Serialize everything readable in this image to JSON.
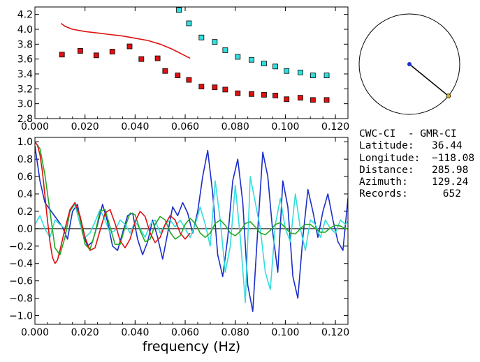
{
  "chart_data": [
    {
      "type": "scatter",
      "title": "",
      "xlabel": "",
      "ylabel": "",
      "xlim": [
        0.0,
        0.125
      ],
      "ylim": [
        2.8,
        4.3
      ],
      "xticks": [
        0.0,
        0.02,
        0.04,
        0.06,
        0.08,
        0.1,
        0.12
      ],
      "xtick_labels": [
        "0.000",
        "0.020",
        "0.040",
        "0.060",
        "0.080",
        "0.100",
        "0.120"
      ],
      "yticks": [
        2.8,
        3.0,
        3.2,
        3.4,
        3.6,
        3.8,
        4.0,
        4.2
      ],
      "ytick_labels": [
        "2.8",
        "3.0",
        "3.2",
        "3.4",
        "3.6",
        "3.8",
        "4.0",
        "4.2"
      ],
      "series": [
        {
          "name": "red squares",
          "style": "markers",
          "color": "#dd1111",
          "x": [
            0.0108,
            0.0181,
            0.0245,
            0.0309,
            0.0378,
            0.0425,
            0.049,
            0.052,
            0.057,
            0.0615,
            0.0665,
            0.0718,
            0.076,
            0.081,
            0.0865,
            0.0915,
            0.096,
            0.1005,
            0.106,
            0.111,
            0.1165
          ],
          "y": [
            3.66,
            3.71,
            3.65,
            3.7,
            3.77,
            3.6,
            3.61,
            3.44,
            3.38,
            3.32,
            3.23,
            3.22,
            3.19,
            3.14,
            3.13,
            3.12,
            3.11,
            3.06,
            3.08,
            3.05,
            3.05
          ]
        },
        {
          "name": "cyan squares",
          "style": "markers",
          "color": "#33dddd",
          "x": [
            0.0575,
            0.0615,
            0.0665,
            0.0718,
            0.076,
            0.081,
            0.0865,
            0.0915,
            0.096,
            0.1005,
            0.106,
            0.111,
            0.1165
          ],
          "y": [
            4.26,
            4.08,
            3.89,
            3.83,
            3.72,
            3.63,
            3.59,
            3.54,
            3.5,
            3.44,
            3.42,
            3.38,
            3.38
          ]
        },
        {
          "name": "red curve",
          "style": "line",
          "color": "#dd1111",
          "x": [
            0.0105,
            0.012,
            0.015,
            0.02,
            0.025,
            0.03,
            0.035,
            0.04,
            0.045,
            0.05,
            0.055,
            0.0585,
            0.062
          ],
          "y": [
            4.08,
            4.04,
            4.0,
            3.97,
            3.95,
            3.93,
            3.91,
            3.88,
            3.85,
            3.8,
            3.73,
            3.67,
            3.61
          ]
        }
      ]
    },
    {
      "type": "line",
      "title": "",
      "xlabel": "frequency (Hz)",
      "ylabel": "",
      "xlim": [
        0.0,
        0.125
      ],
      "ylim": [
        -1.1,
        1.05
      ],
      "xticks": [
        0.0,
        0.02,
        0.04,
        0.06,
        0.08,
        0.1,
        0.12
      ],
      "xtick_labels": [
        "0.000",
        "0.020",
        "0.040",
        "0.060",
        "0.080",
        "0.100",
        "0.120"
      ],
      "yticks": [
        -1.0,
        -0.8,
        -0.6,
        -0.4,
        -0.2,
        0.0,
        0.2,
        0.4,
        0.6,
        0.8,
        1.0
      ],
      "ytick_labels": [
        "−1.0",
        "−0.8",
        "−0.6",
        "−0.4",
        "−0.2",
        "0.0",
        "0.2",
        "0.4",
        "0.6",
        "0.8",
        "1.0"
      ],
      "series": [
        {
          "name": "blue",
          "color": "#1a2ec8",
          "x": [
            0.0,
            0.002,
            0.004,
            0.006,
            0.0085,
            0.011,
            0.013,
            0.015,
            0.017,
            0.019,
            0.021,
            0.023,
            0.025,
            0.027,
            0.029,
            0.031,
            0.033,
            0.035,
            0.037,
            0.039,
            0.041,
            0.043,
            0.045,
            0.047,
            0.049,
            0.051,
            0.053,
            0.055,
            0.057,
            0.059,
            0.061,
            0.063,
            0.065,
            0.067,
            0.069,
            0.071,
            0.073,
            0.075,
            0.077,
            0.079,
            0.081,
            0.083,
            0.085,
            0.087,
            0.089,
            0.091,
            0.093,
            0.095,
            0.097,
            0.099,
            0.101,
            0.103,
            0.105,
            0.107,
            0.109,
            0.111,
            0.113,
            0.115,
            0.117,
            0.119,
            0.121,
            0.123,
            0.125
          ],
          "y": [
            0.95,
            0.55,
            0.3,
            0.22,
            0.12,
            0.02,
            -0.12,
            0.2,
            0.28,
            -0.05,
            -0.2,
            -0.15,
            0.05,
            0.28,
            0.08,
            -0.2,
            -0.25,
            -0.05,
            0.15,
            0.18,
            -0.12,
            -0.3,
            -0.15,
            0.1,
            -0.1,
            -0.35,
            -0.05,
            0.25,
            0.15,
            0.3,
            0.18,
            -0.05,
            0.2,
            0.6,
            0.9,
            0.4,
            -0.3,
            -0.55,
            -0.1,
            0.55,
            0.8,
            0.3,
            -0.65,
            -0.95,
            0.0,
            0.88,
            0.6,
            -0.05,
            -0.5,
            0.55,
            0.25,
            -0.55,
            -0.8,
            -0.1,
            0.45,
            0.2,
            -0.1,
            0.2,
            0.4,
            0.1,
            -0.15,
            -0.25,
            0.35
          ]
        },
        {
          "name": "cyan",
          "color": "#33dddd",
          "x": [
            0.0,
            0.002,
            0.004,
            0.006,
            0.008,
            0.01,
            0.012,
            0.014,
            0.016,
            0.018,
            0.02,
            0.022,
            0.024,
            0.026,
            0.028,
            0.03,
            0.032,
            0.034,
            0.036,
            0.038,
            0.04,
            0.042,
            0.044,
            0.046,
            0.048,
            0.05,
            0.052,
            0.054,
            0.056,
            0.058,
            0.06,
            0.062,
            0.064,
            0.066,
            0.068,
            0.07,
            0.072,
            0.074,
            0.076,
            0.078,
            0.08,
            0.082,
            0.084,
            0.086,
            0.088,
            0.09,
            0.092,
            0.094,
            0.096,
            0.098,
            0.1,
            0.102,
            0.104,
            0.106,
            0.108,
            0.11,
            0.112,
            0.114,
            0.116,
            0.118,
            0.12,
            0.122,
            0.124,
            0.125
          ],
          "y": [
            0.05,
            0.15,
            0.0,
            -0.1,
            0.1,
            0.05,
            0.0,
            0.2,
            0.28,
            0.05,
            -0.1,
            -0.05,
            0.08,
            0.22,
            0.1,
            -0.05,
            -0.02,
            0.1,
            0.05,
            -0.05,
            0.08,
            0.0,
            -0.1,
            0.05,
            0.1,
            -0.05,
            0.05,
            0.1,
            0.02,
            0.1,
            0.0,
            -0.1,
            0.05,
            0.25,
            0.05,
            -0.2,
            0.55,
            0.1,
            -0.5,
            -0.2,
            0.5,
            -0.1,
            -0.85,
            0.6,
            0.3,
            0.0,
            -0.5,
            -0.7,
            0.05,
            0.35,
            0.0,
            -0.15,
            0.4,
            0.0,
            -0.25,
            0.1,
            0.05,
            -0.1,
            0.1,
            0.0,
            -0.05,
            0.1,
            0.05,
            0.08
          ]
        },
        {
          "name": "green",
          "color": "#22aa22",
          "x": [
            0.0,
            0.002,
            0.004,
            0.006,
            0.008,
            0.01,
            0.012,
            0.014,
            0.016,
            0.018,
            0.02,
            0.022,
            0.024,
            0.026,
            0.028,
            0.03,
            0.032,
            0.034,
            0.036,
            0.038,
            0.04,
            0.042,
            0.044,
            0.046,
            0.048,
            0.05,
            0.052,
            0.054,
            0.056,
            0.058,
            0.06,
            0.062,
            0.064,
            0.066,
            0.068,
            0.07,
            0.072,
            0.074,
            0.076,
            0.078,
            0.08,
            0.082,
            0.084,
            0.086,
            0.088,
            0.09,
            0.092,
            0.094,
            0.096,
            0.098,
            0.1,
            0.102,
            0.104,
            0.106,
            0.108,
            0.11,
            0.112,
            0.114,
            0.116,
            0.118,
            0.12,
            0.122,
            0.124,
            0.125
          ],
          "y": [
            1.0,
            0.92,
            0.62,
            0.2,
            -0.22,
            -0.3,
            -0.1,
            0.2,
            0.3,
            0.12,
            -0.18,
            -0.24,
            -0.05,
            0.2,
            0.22,
            0.02,
            -0.18,
            -0.18,
            0.02,
            0.18,
            0.16,
            -0.02,
            -0.15,
            -0.12,
            0.05,
            0.14,
            0.1,
            -0.04,
            -0.12,
            -0.08,
            0.05,
            0.12,
            0.06,
            -0.05,
            -0.1,
            -0.05,
            0.06,
            0.1,
            0.04,
            -0.05,
            -0.08,
            -0.03,
            0.06,
            0.08,
            0.02,
            -0.05,
            -0.07,
            -0.02,
            0.05,
            0.07,
            0.01,
            -0.05,
            -0.06,
            0.0,
            0.05,
            0.05,
            0.0,
            -0.04,
            -0.04,
            0.01,
            0.04,
            0.03,
            0.0,
            0.0
          ]
        },
        {
          "name": "red",
          "color": "#dd1111",
          "x": [
            0.0,
            0.001,
            0.002,
            0.003,
            0.004,
            0.005,
            0.006,
            0.007,
            0.008,
            0.009,
            0.01,
            0.012,
            0.014,
            0.016,
            0.018,
            0.02,
            0.022,
            0.024,
            0.026,
            0.028,
            0.03,
            0.032,
            0.034,
            0.036,
            0.038,
            0.04,
            0.042,
            0.044,
            0.046,
            0.048,
            0.05,
            0.052,
            0.054,
            0.056,
            0.058,
            0.06,
            0.062
          ],
          "y": [
            1.0,
            0.96,
            0.85,
            0.65,
            0.38,
            0.1,
            -0.15,
            -0.33,
            -0.4,
            -0.36,
            -0.25,
            0.0,
            0.22,
            0.3,
            0.15,
            -0.1,
            -0.25,
            -0.22,
            -0.02,
            0.18,
            0.22,
            0.06,
            -0.14,
            -0.22,
            -0.12,
            0.08,
            0.2,
            0.14,
            -0.05,
            -0.16,
            -0.1,
            0.05,
            0.15,
            0.1,
            -0.05,
            -0.12,
            -0.05
          ]
        }
      ]
    }
  ],
  "map": {
    "azimuth_deg": 129.24,
    "center_color": "#1a2ec8",
    "end_color": "#ddaa22",
    "line_color": "#000000"
  },
  "info": {
    "title": "CWC-CI  - GMR-CI",
    "rows": [
      {
        "label": "Latitude:",
        "value": "36.44"
      },
      {
        "label": "Longitude:",
        "value": "−118.08"
      },
      {
        "label": "Distance:",
        "value": "285.98"
      },
      {
        "label": "Azimuth:",
        "value": "129.24"
      },
      {
        "label": "Records:",
        "value": "652"
      }
    ]
  }
}
